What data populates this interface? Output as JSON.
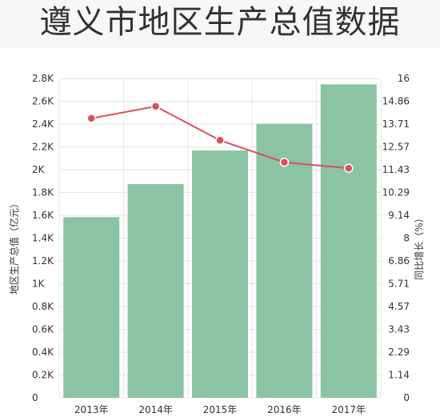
{
  "page": {
    "title": "遵义市地区生产总值数据"
  },
  "colors": {
    "bar": "#8ac4a2",
    "line": "#d9505a",
    "grid": "#e6e6e6",
    "title_bg": "#f7f7f7"
  },
  "chart_data": {
    "type": "bar",
    "title": "遵义市地区生产总值数据",
    "categories": [
      "2013年",
      "2014年",
      "2015年",
      "2016年",
      "2017年"
    ],
    "series": [
      {
        "type": "bar",
        "axis": "left",
        "values": [
          1584,
          1874,
          2168,
          2403,
          2748
        ]
      },
      {
        "type": "line",
        "axis": "right",
        "values": [
          14.0,
          14.6,
          12.9,
          11.8,
          11.5
        ]
      }
    ],
    "ylabel": "地区生产总值（亿元）",
    "y2label": "同比增长（%）",
    "ylim": [
      0,
      2800
    ],
    "y2lim": [
      0,
      16
    ],
    "yticks": [
      "0",
      "0.2K",
      "0.4K",
      "0.6K",
      "0.8K",
      "1K",
      "1.2K",
      "1.4K",
      "1.6K",
      "1.8K",
      "2K",
      "2.2K",
      "2.4K",
      "2.6K",
      "2.8K"
    ],
    "y2ticks": [
      "0",
      "1.14",
      "2.29",
      "3.43",
      "4.57",
      "5.71",
      "6.86",
      "8",
      "9.14",
      "10.29",
      "11.43",
      "12.57",
      "13.71",
      "14.86",
      "16"
    ],
    "grid": true
  }
}
